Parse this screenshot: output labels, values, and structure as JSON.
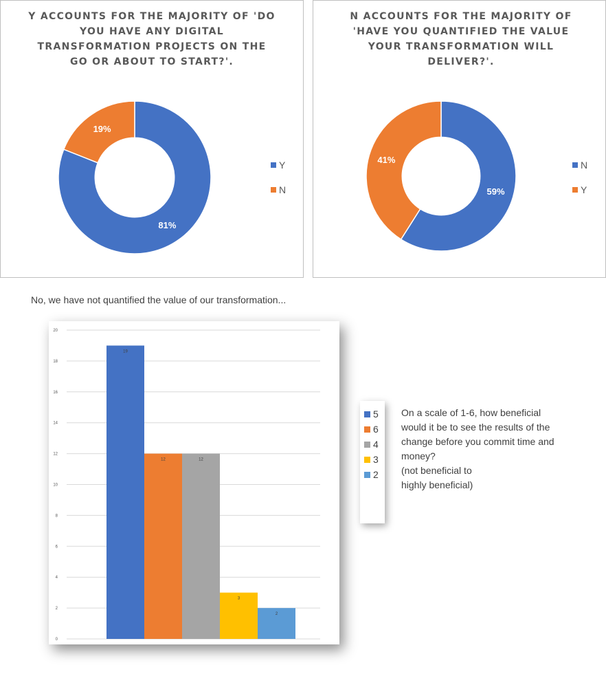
{
  "colors": {
    "blue": "#4472c4",
    "orange": "#ed7d31",
    "gray": "#a5a5a5",
    "yellow": "#ffc000",
    "lightblue": "#5b9bd5"
  },
  "left_panel": {
    "title": "Y ACCOUNTS FOR THE MAJORITY OF 'DO YOU HAVE ANY DIGITAL TRANSFORMATION PROJECTS ON THE GO OR ABOUT TO START?'."
  },
  "right_panel": {
    "title": "N ACCOUNTS FOR THE MAJORITY OF 'HAVE YOU QUANTIFIED THE VALUE YOUR TRANSFORMATION WILL DELIVER?'."
  },
  "bar_section": {
    "subtitle": "No, we have not quantified the value of our transformation...",
    "question": "On a scale of 1-6, how beneficial would it be to see the results of the change before you commit time and money?\n(not beneficial to\nhighly beneficial)"
  },
  "chart_data": [
    {
      "type": "pie",
      "title": "Y ACCOUNTS FOR THE MAJORITY OF 'DO YOU HAVE ANY DIGITAL TRANSFORMATION PROJECTS ON THE GO OR ABOUT TO START?'.",
      "categories": [
        "Y",
        "N"
      ],
      "values": [
        81,
        19
      ],
      "labels": [
        "81%",
        "19%"
      ],
      "colors": [
        "#4472c4",
        "#ed7d31"
      ],
      "donut": true,
      "legend": "right"
    },
    {
      "type": "pie",
      "title": "N ACCOUNTS FOR THE MAJORITY OF 'HAVE YOU QUANTIFIED THE VALUE YOUR TRANSFORMATION WILL DELIVER?'.",
      "categories": [
        "N",
        "Y"
      ],
      "values": [
        59,
        41
      ],
      "labels": [
        "59%",
        "41%"
      ],
      "colors": [
        "#4472c4",
        "#ed7d31"
      ],
      "donut": true,
      "legend": "right"
    },
    {
      "type": "bar",
      "categories": [
        "5",
        "6",
        "4",
        "3",
        "2"
      ],
      "values": [
        19,
        12,
        12,
        3,
        2
      ],
      "data_labels": [
        "19",
        "12",
        "12",
        "3",
        "2"
      ],
      "colors": [
        "#4472c4",
        "#ed7d31",
        "#a5a5a5",
        "#ffc000",
        "#5b9bd5"
      ],
      "ylim": [
        0,
        20
      ],
      "yticks": [
        0,
        2,
        4,
        6,
        8,
        10,
        12,
        14,
        16,
        18,
        20
      ],
      "grid": true,
      "legend": "right"
    }
  ]
}
